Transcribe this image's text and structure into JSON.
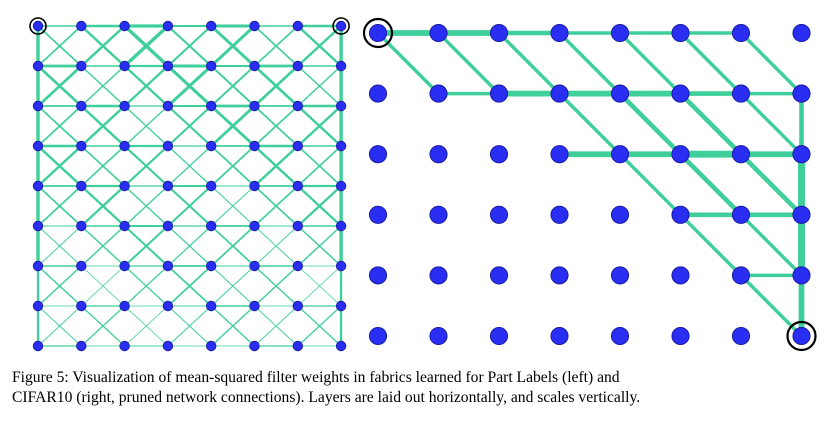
{
  "caption": {
    "line1": "Figure 5: Visualization of mean-squared filter weights in fabrics learned for Part Labels (left) and",
    "line2": "CIFAR10 (right, pruned network connections). Layers are laid out horizontally, and scales vertically."
  },
  "colors": {
    "node_fill": "#2a2ef2",
    "node_stroke": "#15189a",
    "edge": "#3ecf9a",
    "io_ring": "#000000"
  },
  "left_fabric": {
    "layers": 8,
    "scales": 9,
    "io_nodes": [
      [
        0,
        0
      ],
      [
        7,
        0
      ]
    ]
  },
  "right_fabric": {
    "layers": 8,
    "scales": 6,
    "io_nodes": [
      [
        0,
        0
      ],
      [
        7,
        5
      ]
    ],
    "edges": [
      [
        0,
        0,
        1,
        0,
        5
      ],
      [
        1,
        0,
        2,
        0,
        5
      ],
      [
        2,
        0,
        3,
        0,
        4
      ],
      [
        3,
        0,
        4,
        0,
        3
      ],
      [
        4,
        0,
        5,
        0,
        3
      ],
      [
        5,
        0,
        6,
        0,
        3
      ],
      [
        0,
        0,
        1,
        1,
        3
      ],
      [
        1,
        0,
        2,
        1,
        3
      ],
      [
        2,
        0,
        3,
        1,
        3
      ],
      [
        3,
        0,
        4,
        1,
        3
      ],
      [
        4,
        0,
        5,
        1,
        3
      ],
      [
        5,
        0,
        6,
        1,
        3
      ],
      [
        6,
        0,
        7,
        1,
        3
      ],
      [
        1,
        1,
        2,
        1,
        3
      ],
      [
        2,
        1,
        3,
        1,
        5
      ],
      [
        3,
        1,
        4,
        1,
        5
      ],
      [
        4,
        1,
        5,
        1,
        5
      ],
      [
        5,
        1,
        6,
        1,
        4
      ],
      [
        6,
        1,
        7,
        1,
        3
      ],
      [
        3,
        1,
        4,
        2,
        3
      ],
      [
        4,
        1,
        5,
        2,
        4
      ],
      [
        5,
        1,
        6,
        2,
        4
      ],
      [
        6,
        1,
        7,
        2,
        3
      ],
      [
        3,
        2,
        4,
        2,
        5
      ],
      [
        4,
        2,
        5,
        2,
        5
      ],
      [
        5,
        2,
        6,
        2,
        6
      ],
      [
        6,
        2,
        7,
        2,
        5
      ],
      [
        4,
        2,
        5,
        3,
        3
      ],
      [
        5,
        2,
        6,
        3,
        4
      ],
      [
        6,
        2,
        7,
        3,
        4
      ],
      [
        5,
        3,
        6,
        3,
        4
      ],
      [
        6,
        3,
        7,
        3,
        4
      ],
      [
        5,
        3,
        6,
        4,
        3
      ],
      [
        6,
        3,
        7,
        4,
        3
      ],
      [
        6,
        4,
        7,
        4,
        3
      ],
      [
        6,
        4,
        7,
        5,
        3
      ],
      [
        7,
        1,
        7,
        2,
        4
      ],
      [
        7,
        2,
        7,
        3,
        6
      ],
      [
        7,
        3,
        7,
        4,
        6
      ],
      [
        7,
        4,
        7,
        5,
        5
      ]
    ]
  }
}
